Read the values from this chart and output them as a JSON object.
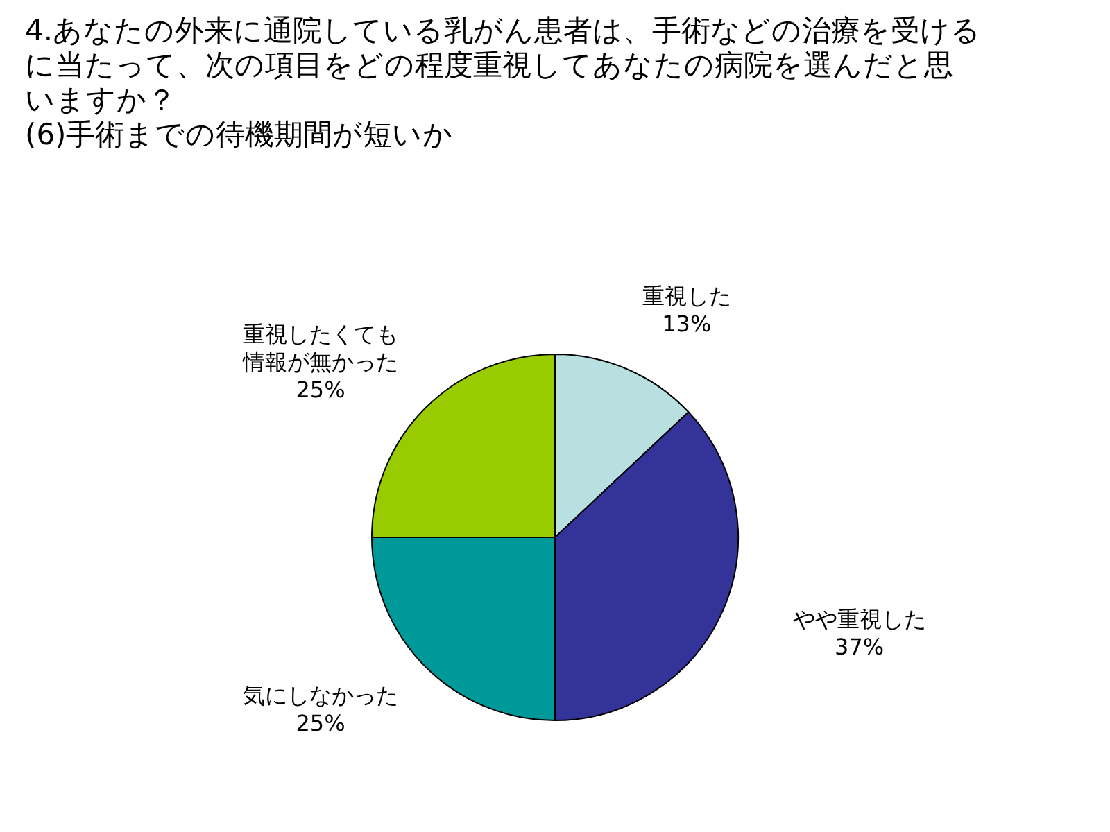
{
  "chart_data": {
    "type": "pie",
    "title": "4.あなたの外来に通院している乳がん患者は、手術などの治療を受けるに当たって、次の項目をどの程度重視してあなたの病院を選んだと思いますか？",
    "subtitle": "(6)手術までの待機期間が短いか",
    "categories": [
      "重視した",
      "やや重視した",
      "気にしなかった",
      "重視したくても情報が無かった"
    ],
    "values": [
      13,
      37,
      25,
      25
    ],
    "colors": [
      "#b8e0e0",
      "#333399",
      "#009999",
      "#99cc00"
    ],
    "value_labels": [
      "13%",
      "37%",
      "25%",
      "25%"
    ],
    "legend": false
  }
}
